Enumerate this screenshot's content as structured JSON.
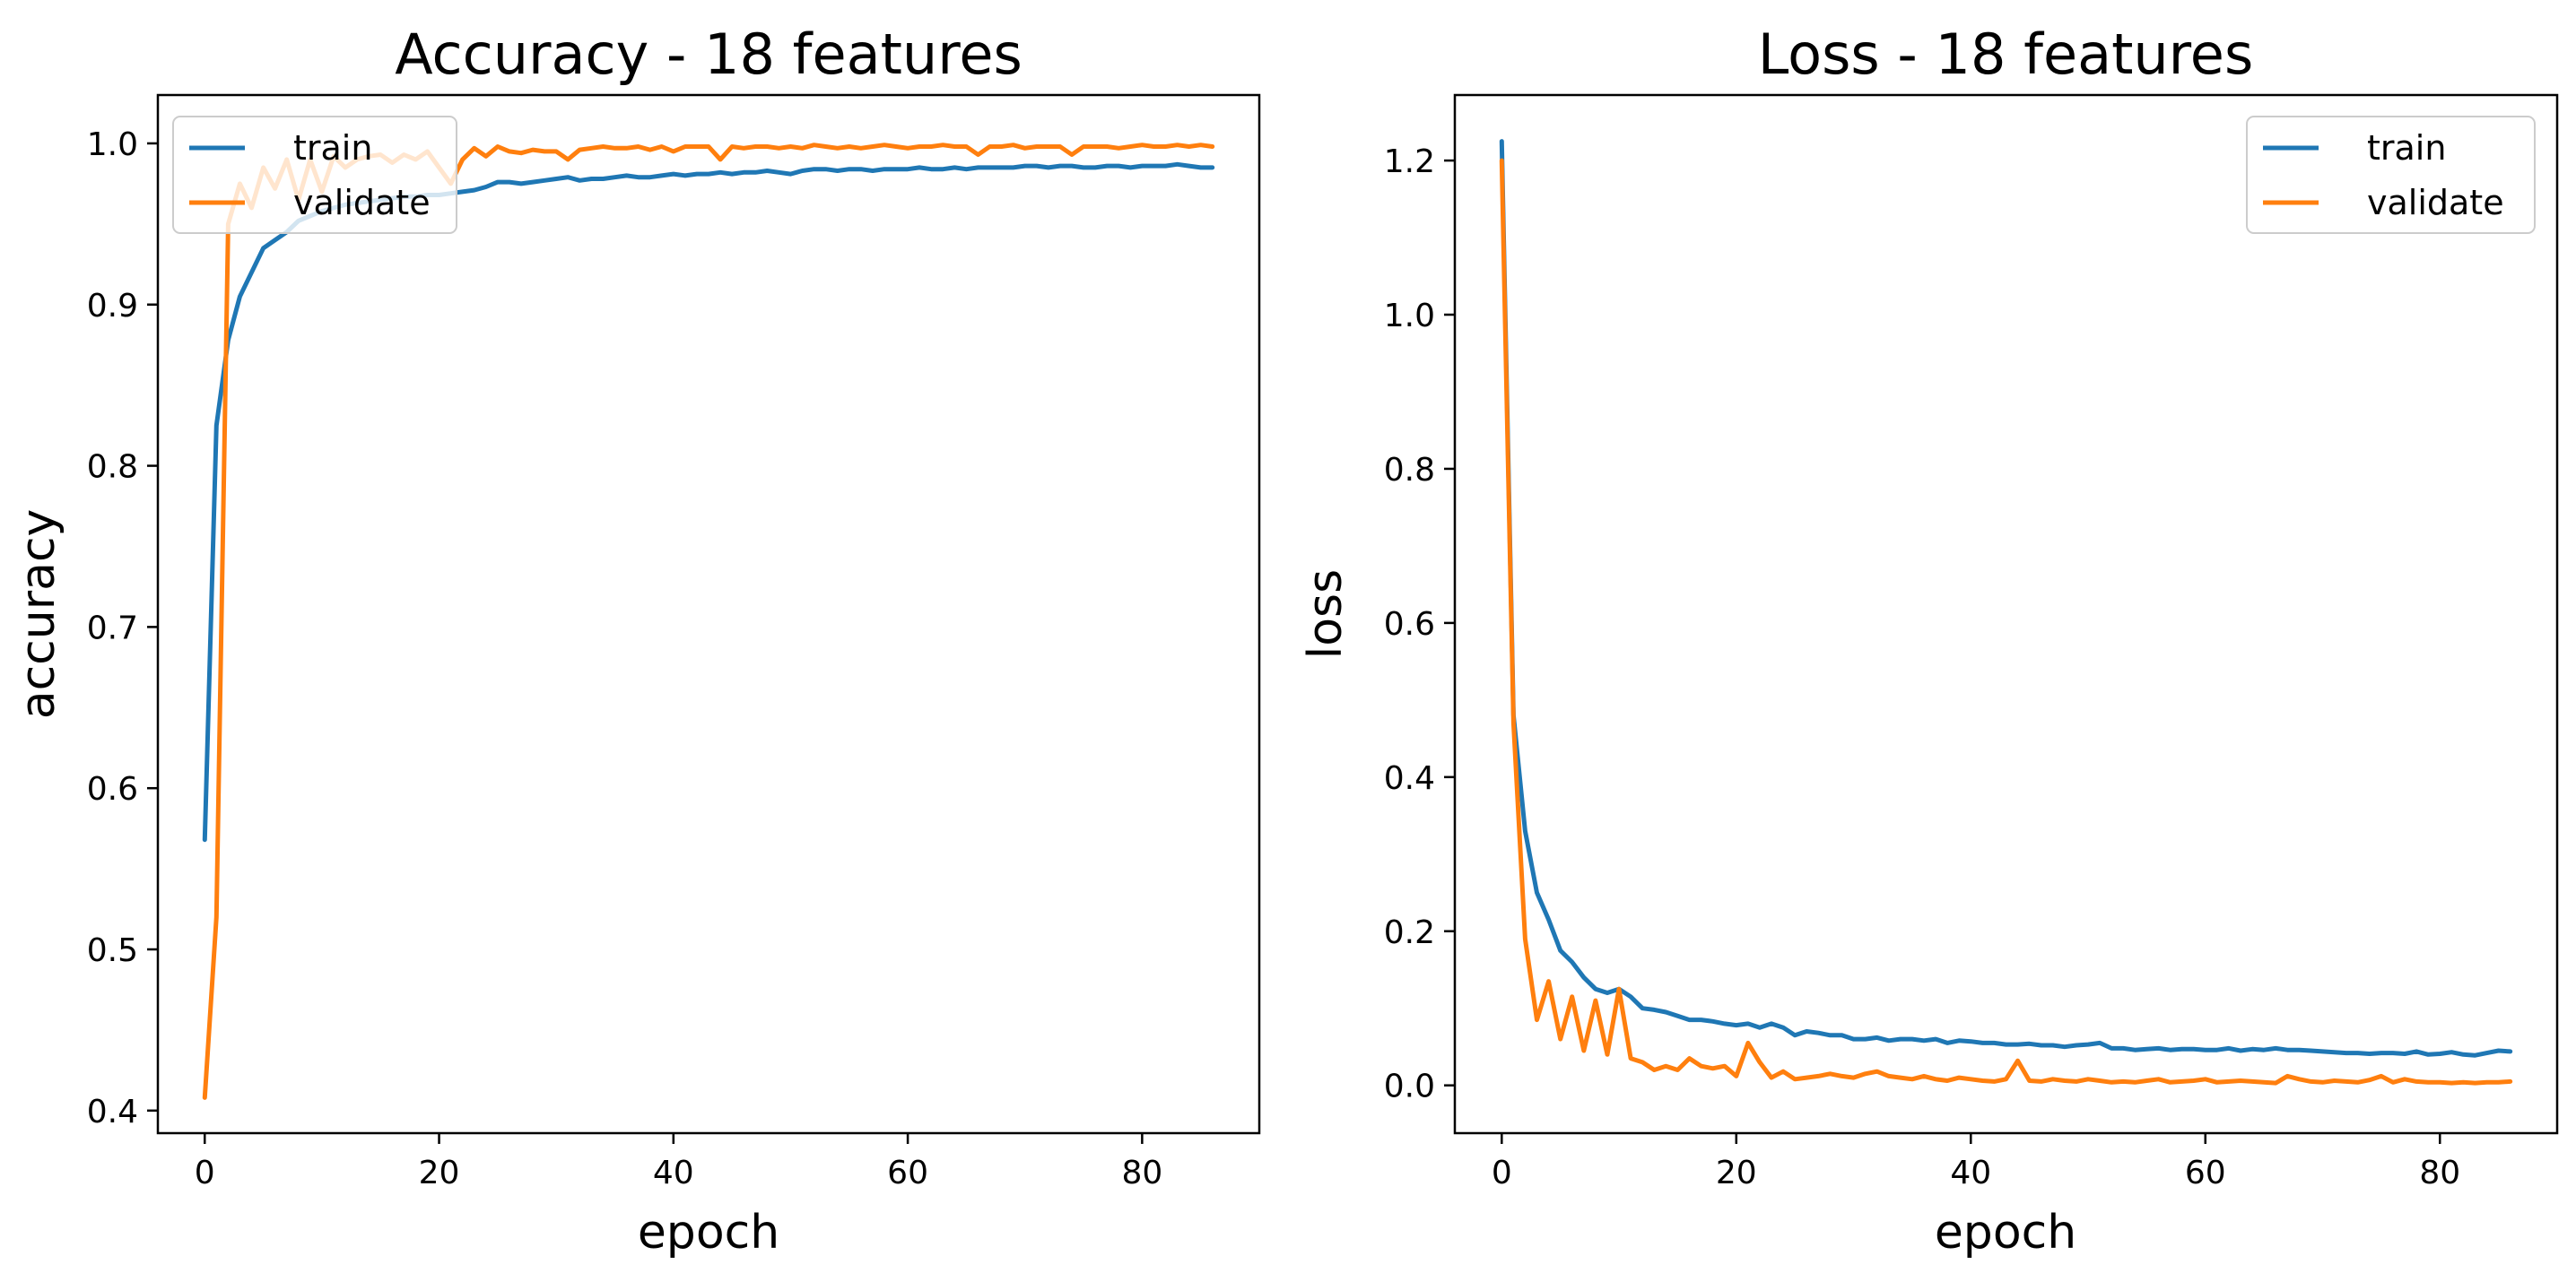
{
  "chart_data": [
    {
      "type": "line",
      "title": "Accuracy - 18 features",
      "xlabel": "epoch",
      "ylabel": "accuracy",
      "xlim": [
        -4,
        90
      ],
      "ylim": [
        0.386,
        1.03
      ],
      "xticks": [
        0,
        20,
        40,
        60,
        80
      ],
      "xtick_labels": [
        "0",
        "20",
        "40",
        "60",
        "80"
      ],
      "yticks": [
        0.4,
        0.5,
        0.6,
        0.7,
        0.8,
        0.9,
        1.0
      ],
      "ytick_labels": [
        "0.4",
        "0.5",
        "0.6",
        "0.7",
        "0.8",
        "0.9",
        "1.0"
      ],
      "grid": false,
      "legend_position": "top-left",
      "colors": {
        "train": "#1f77b4",
        "validate": "#ff7f0e"
      },
      "series": [
        {
          "name": "train",
          "x": [
            0,
            1,
            2,
            3,
            4,
            5,
            6,
            7,
            8,
            9,
            10,
            11,
            12,
            13,
            14,
            15,
            16,
            17,
            18,
            19,
            20,
            21,
            22,
            23,
            24,
            25,
            26,
            27,
            28,
            29,
            30,
            31,
            32,
            33,
            34,
            35,
            36,
            37,
            38,
            39,
            40,
            41,
            42,
            43,
            44,
            45,
            46,
            47,
            48,
            49,
            50,
            51,
            52,
            53,
            54,
            55,
            56,
            57,
            58,
            59,
            60,
            61,
            62,
            63,
            64,
            65,
            66,
            67,
            68,
            69,
            70,
            71,
            72,
            73,
            74,
            75,
            76,
            77,
            78,
            79,
            80,
            81,
            82,
            83,
            84,
            85,
            86
          ],
          "y": [
            0.568,
            0.825,
            0.878,
            0.905,
            0.92,
            0.935,
            0.94,
            0.945,
            0.952,
            0.955,
            0.958,
            0.96,
            0.962,
            0.963,
            0.964,
            0.965,
            0.966,
            0.967,
            0.967,
            0.968,
            0.968,
            0.969,
            0.97,
            0.971,
            0.973,
            0.976,
            0.976,
            0.975,
            0.976,
            0.977,
            0.978,
            0.979,
            0.977,
            0.978,
            0.978,
            0.979,
            0.98,
            0.979,
            0.979,
            0.98,
            0.981,
            0.98,
            0.981,
            0.981,
            0.982,
            0.981,
            0.982,
            0.982,
            0.983,
            0.982,
            0.981,
            0.983,
            0.984,
            0.984,
            0.983,
            0.984,
            0.984,
            0.983,
            0.984,
            0.984,
            0.984,
            0.985,
            0.984,
            0.984,
            0.985,
            0.984,
            0.985,
            0.985,
            0.985,
            0.985,
            0.986,
            0.986,
            0.985,
            0.986,
            0.986,
            0.985,
            0.985,
            0.986,
            0.986,
            0.985,
            0.986,
            0.986,
            0.986,
            0.987,
            0.986,
            0.985,
            0.985
          ]
        },
        {
          "name": "validate",
          "x": [
            0,
            1,
            2,
            3,
            4,
            5,
            6,
            7,
            8,
            9,
            10,
            11,
            12,
            13,
            14,
            15,
            16,
            17,
            18,
            19,
            20,
            21,
            22,
            23,
            24,
            25,
            26,
            27,
            28,
            29,
            30,
            31,
            32,
            33,
            34,
            35,
            36,
            37,
            38,
            39,
            40,
            41,
            42,
            43,
            44,
            45,
            46,
            47,
            48,
            49,
            50,
            51,
            52,
            53,
            54,
            55,
            56,
            57,
            58,
            59,
            60,
            61,
            62,
            63,
            64,
            65,
            66,
            67,
            68,
            69,
            70,
            71,
            72,
            73,
            74,
            75,
            76,
            77,
            78,
            79,
            80,
            81,
            82,
            83,
            84,
            85,
            86
          ],
          "y": [
            0.408,
            0.52,
            0.95,
            0.975,
            0.96,
            0.985,
            0.972,
            0.99,
            0.965,
            0.99,
            0.97,
            0.992,
            0.985,
            0.99,
            0.992,
            0.993,
            0.988,
            0.993,
            0.99,
            0.995,
            0.985,
            0.975,
            0.99,
            0.997,
            0.992,
            0.998,
            0.995,
            0.994,
            0.996,
            0.995,
            0.995,
            0.99,
            0.996,
            0.997,
            0.998,
            0.997,
            0.997,
            0.998,
            0.996,
            0.998,
            0.995,
            0.998,
            0.998,
            0.998,
            0.99,
            0.998,
            0.997,
            0.998,
            0.998,
            0.997,
            0.998,
            0.997,
            0.999,
            0.998,
            0.997,
            0.998,
            0.997,
            0.998,
            0.999,
            0.998,
            0.997,
            0.998,
            0.998,
            0.999,
            0.998,
            0.998,
            0.993,
            0.998,
            0.998,
            0.999,
            0.997,
            0.998,
            0.998,
            0.998,
            0.993,
            0.998,
            0.998,
            0.998,
            0.997,
            0.998,
            0.999,
            0.998,
            0.998,
            0.999,
            0.998,
            0.999,
            0.998
          ]
        }
      ]
    },
    {
      "type": "line",
      "title": "Loss - 18 features",
      "xlabel": "epoch",
      "ylabel": "loss",
      "xlim": [
        -4,
        90
      ],
      "ylim": [
        -0.062,
        1.285
      ],
      "xticks": [
        0,
        20,
        40,
        60,
        80
      ],
      "xtick_labels": [
        "0",
        "20",
        "40",
        "60",
        "80"
      ],
      "yticks": [
        0.0,
        0.2,
        0.4,
        0.6,
        0.8,
        1.0,
        1.2
      ],
      "ytick_labels": [
        "0.0",
        "0.2",
        "0.4",
        "0.6",
        "0.8",
        "1.0",
        "1.2"
      ],
      "grid": false,
      "legend_position": "top-right",
      "colors": {
        "train": "#1f77b4",
        "validate": "#ff7f0e"
      },
      "series": [
        {
          "name": "train",
          "x": [
            0,
            1,
            2,
            3,
            4,
            5,
            6,
            7,
            8,
            9,
            10,
            11,
            12,
            13,
            14,
            15,
            16,
            17,
            18,
            19,
            20,
            21,
            22,
            23,
            24,
            25,
            26,
            27,
            28,
            29,
            30,
            31,
            32,
            33,
            34,
            35,
            36,
            37,
            38,
            39,
            40,
            41,
            42,
            43,
            44,
            45,
            46,
            47,
            48,
            49,
            50,
            51,
            52,
            53,
            54,
            55,
            56,
            57,
            58,
            59,
            60,
            61,
            62,
            63,
            64,
            65,
            66,
            67,
            68,
            69,
            70,
            71,
            72,
            73,
            74,
            75,
            76,
            77,
            78,
            79,
            80,
            81,
            82,
            83,
            84,
            85,
            86
          ],
          "y": [
            1.225,
            0.48,
            0.33,
            0.25,
            0.215,
            0.175,
            0.16,
            0.14,
            0.125,
            0.12,
            0.125,
            0.115,
            0.1,
            0.098,
            0.095,
            0.09,
            0.085,
            0.085,
            0.083,
            0.08,
            0.078,
            0.08,
            0.075,
            0.08,
            0.075,
            0.065,
            0.07,
            0.068,
            0.065,
            0.065,
            0.06,
            0.06,
            0.062,
            0.058,
            0.06,
            0.06,
            0.058,
            0.06,
            0.055,
            0.058,
            0.057,
            0.055,
            0.055,
            0.053,
            0.053,
            0.054,
            0.052,
            0.052,
            0.05,
            0.052,
            0.053,
            0.055,
            0.048,
            0.048,
            0.046,
            0.047,
            0.048,
            0.046,
            0.047,
            0.047,
            0.046,
            0.046,
            0.048,
            0.045,
            0.047,
            0.046,
            0.048,
            0.046,
            0.046,
            0.045,
            0.044,
            0.043,
            0.042,
            0.042,
            0.041,
            0.042,
            0.042,
            0.041,
            0.044,
            0.04,
            0.041,
            0.043,
            0.04,
            0.039,
            0.042,
            0.045,
            0.044
          ]
        },
        {
          "name": "validate",
          "x": [
            0,
            1,
            2,
            3,
            4,
            5,
            6,
            7,
            8,
            9,
            10,
            11,
            12,
            13,
            14,
            15,
            16,
            17,
            18,
            19,
            20,
            21,
            22,
            23,
            24,
            25,
            26,
            27,
            28,
            29,
            30,
            31,
            32,
            33,
            34,
            35,
            36,
            37,
            38,
            39,
            40,
            41,
            42,
            43,
            44,
            45,
            46,
            47,
            48,
            49,
            50,
            51,
            52,
            53,
            54,
            55,
            56,
            57,
            58,
            59,
            60,
            61,
            62,
            63,
            64,
            65,
            66,
            67,
            68,
            69,
            70,
            71,
            72,
            73,
            74,
            75,
            76,
            77,
            78,
            79,
            80,
            81,
            82,
            83,
            84,
            85,
            86
          ],
          "y": [
            1.2,
            0.47,
            0.19,
            0.085,
            0.135,
            0.06,
            0.115,
            0.045,
            0.11,
            0.04,
            0.125,
            0.035,
            0.03,
            0.02,
            0.025,
            0.02,
            0.035,
            0.025,
            0.022,
            0.025,
            0.012,
            0.055,
            0.03,
            0.01,
            0.018,
            0.008,
            0.01,
            0.012,
            0.015,
            0.012,
            0.01,
            0.015,
            0.018,
            0.012,
            0.01,
            0.008,
            0.012,
            0.008,
            0.006,
            0.01,
            0.008,
            0.006,
            0.005,
            0.008,
            0.032,
            0.006,
            0.005,
            0.008,
            0.006,
            0.005,
            0.008,
            0.006,
            0.004,
            0.005,
            0.004,
            0.006,
            0.008,
            0.004,
            0.005,
            0.006,
            0.008,
            0.004,
            0.005,
            0.006,
            0.005,
            0.004,
            0.003,
            0.012,
            0.008,
            0.005,
            0.004,
            0.006,
            0.005,
            0.004,
            0.007,
            0.012,
            0.004,
            0.008,
            0.005,
            0.004,
            0.004,
            0.003,
            0.004,
            0.003,
            0.004,
            0.004,
            0.005
          ]
        }
      ]
    }
  ]
}
